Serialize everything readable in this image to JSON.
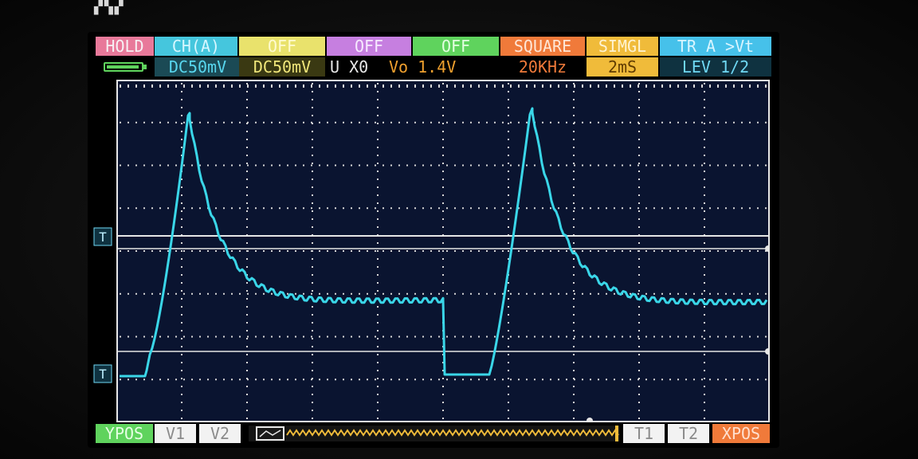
{
  "header": {
    "hold": "HOLD",
    "channel": "CH(A)",
    "off_1": "OFF",
    "off_2": "OFF",
    "off_3": "OFF",
    "wave": "SQUARE",
    "mode": "SIMGL",
    "trigger": "TR A >Vt"
  },
  "status": {
    "ch_a_scale": "DC50mV",
    "ch_b_scale": "DC50mV",
    "ux": "U X0",
    "vo": "Vo 1.4V",
    "frequency": "20KHz",
    "timebase": "2mS",
    "level": "LEV 1/2"
  },
  "markers": {
    "trigger": "T",
    "ground": "T"
  },
  "footer": {
    "ypos": "YPOS",
    "v1": "V1",
    "v2": "V2",
    "t1": "T1",
    "t2": "T2",
    "xpos": "XPOS"
  },
  "colors": {
    "trace": "#3ad6e8",
    "grid_dot": "#d8d8d8",
    "cursor_line": "#e6e6e6",
    "scroll_zigzag": "#f0bb3a",
    "hold": "#e8799a",
    "channel": "#45c6dd",
    "off_yellow": "#e9e26c",
    "off_purple": "#c67fe0",
    "off_green": "#5fd35d",
    "square": "#f07a3a",
    "simgl": "#f0bb3a"
  },
  "icons": {
    "battery": "battery-icon",
    "scroll_handle": "scroll-handle-icon"
  }
}
